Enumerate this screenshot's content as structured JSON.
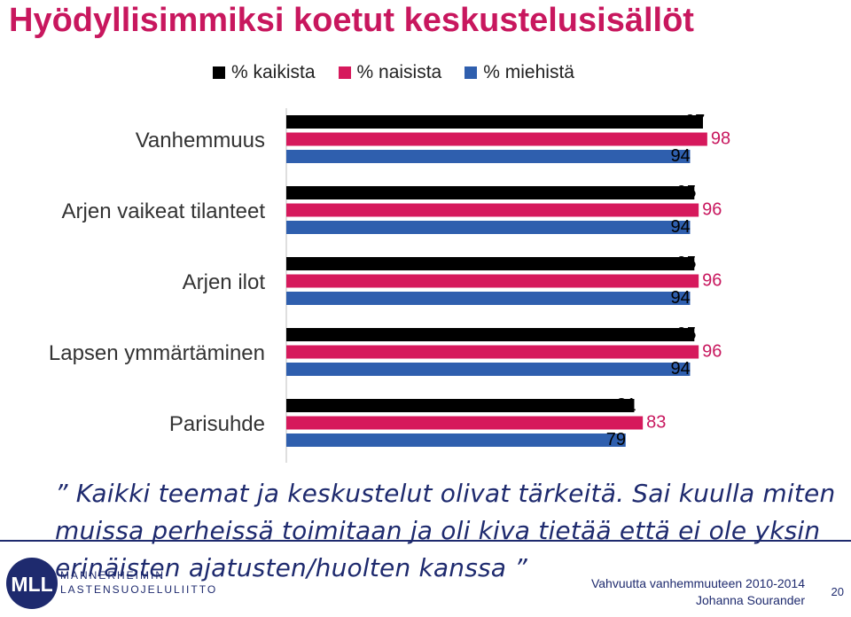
{
  "page_title": "Hyödyllisimmiksi koetut keskustelusisällöt",
  "colors": {
    "accent": "#c8175e",
    "navy": "#1e2a6e",
    "black": "#000000",
    "pink": "#d6195c",
    "blue": "#2f5fae"
  },
  "chart_data": {
    "type": "bar",
    "orientation": "horizontal",
    "categories": [
      "Vanhemmuus",
      "Arjen vaikeat tilanteet",
      "Arjen ilot",
      "Lapsen ymmärtäminen",
      "Parisuhde"
    ],
    "series": [
      {
        "name": "% kaikista",
        "color": "#000000",
        "values": [
          97,
          95,
          95,
          95,
          81
        ]
      },
      {
        "name": "% naisista",
        "color": "#d6195c",
        "values": [
          98,
          96,
          96,
          96,
          83
        ]
      },
      {
        "name": "% miehistä",
        "color": "#2f5fae",
        "values": [
          94,
          94,
          94,
          94,
          79
        ]
      }
    ],
    "xlim": [
      0,
      100
    ],
    "legend_position": "top",
    "grid": false,
    "data_labels": true
  },
  "quote": {
    "line1": "” Kaikki teemat ja keskustelut olivat tärkeitä. Sai kuulla miten",
    "line2": "muissa perheissä toimitaan ja oli kiva tietää että ei ole yksin",
    "line3": "erinäisten ajatusten/huolten kanssa ”"
  },
  "logo": {
    "abbr": "MLL",
    "line1": "MANNERHEIMIN",
    "line2": "LASTENSUOJELULIITTO",
    "icon": "mll-logo-icon"
  },
  "footer": {
    "project": "Vahvuutta vanhemmuuteen 2010-2014",
    "author": "Johanna Sourander",
    "page_number": "20"
  }
}
